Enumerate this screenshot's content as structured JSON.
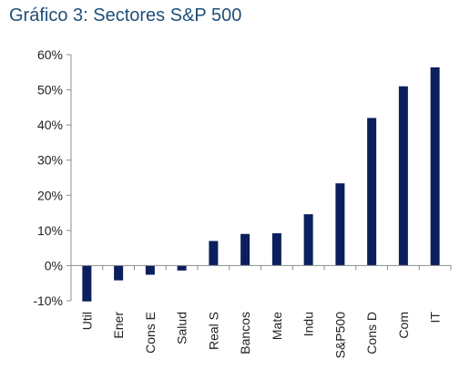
{
  "chart_data": {
    "type": "bar",
    "title": "Gráfico 3: Sectores S&P 500",
    "categories": [
      "Util",
      "Ener",
      "Cons E",
      "Salud",
      "Real S",
      "Bancos",
      "Mate",
      "Indu",
      "S&P500",
      "Cons D",
      "Com",
      "IT"
    ],
    "values": [
      -10.2,
      -4.2,
      -2.6,
      -1.4,
      7.0,
      9.0,
      9.2,
      14.6,
      23.4,
      42.0,
      51.0,
      56.4
    ],
    "yticks": [
      "60%",
      "50%",
      "40%",
      "30%",
      "20%",
      "10%",
      "0%",
      "-10%"
    ],
    "ylim": [
      -10,
      60
    ],
    "xlabel": "",
    "ylabel": "",
    "grid": false,
    "legend": "none",
    "colors": {
      "bar": "#0a1f5c",
      "axis": "#8c8c8c",
      "title": "#1f4e79"
    }
  }
}
